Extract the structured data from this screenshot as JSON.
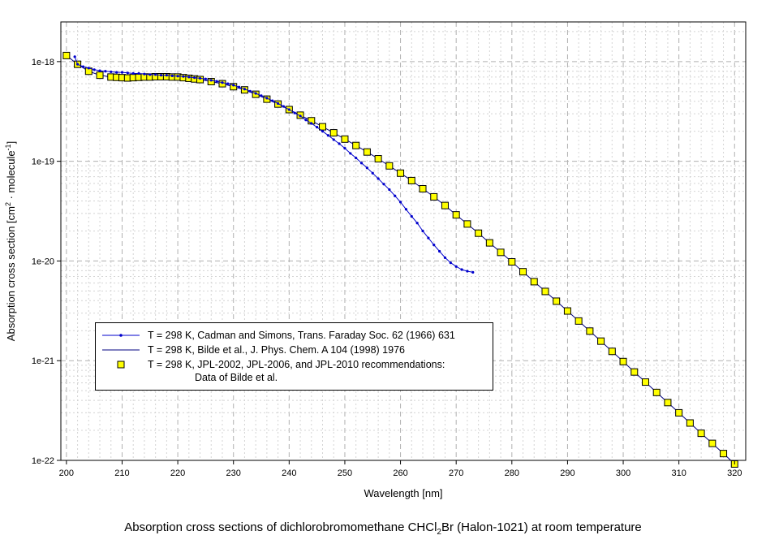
{
  "chart_data": {
    "type": "line",
    "xlabel": "Wavelength [nm]",
    "ylabel_parts": [
      "Absorption cross section [cm",
      "2",
      " · molecule",
      "-1",
      "]"
    ],
    "xlim": [
      199,
      322
    ],
    "ylim": [
      1e-22,
      2.5e-18
    ],
    "yscale": "log",
    "grid": true,
    "legend_position": "lower-left",
    "x_ticks": [
      200,
      210,
      220,
      230,
      240,
      250,
      260,
      270,
      280,
      290,
      300,
      310,
      320
    ],
    "y_ticks": [
      {
        "value": 1e-22,
        "label": "1e-22"
      },
      {
        "value": 1e-21,
        "label": "1e-21"
      },
      {
        "value": 1e-20,
        "label": "1e-20"
      },
      {
        "value": 1e-19,
        "label": "1e-19"
      },
      {
        "value": 1e-18,
        "label": "1e-18"
      }
    ],
    "series": [
      {
        "name": "T = 298 K, Cadman and Simons, Trans. Faraday Soc. 62 (1966) 631",
        "color": "#0000cc",
        "marker": "dot",
        "x": [
          201.5,
          202,
          203,
          204,
          205,
          206,
          207,
          208,
          209,
          210,
          211,
          212,
          213,
          214,
          215,
          216,
          217,
          218,
          219,
          220,
          221,
          222,
          223,
          224,
          225,
          226,
          227,
          228,
          229,
          230,
          231,
          232,
          233,
          234,
          235,
          236,
          237,
          238,
          239,
          240,
          241,
          242,
          243,
          244,
          245,
          246,
          247,
          248,
          249,
          250,
          251,
          252,
          253,
          254,
          255,
          256,
          257,
          258,
          259,
          260,
          261,
          262,
          263,
          264,
          265,
          266,
          267,
          268,
          269,
          270,
          271,
          272,
          273
        ],
        "y": [
          1.12e-18,
          9.4e-19,
          8.9e-19,
          8.6e-19,
          8.3e-19,
          8.1e-19,
          8e-19,
          7.9e-19,
          7.8e-19,
          7.8e-19,
          7.7e-19,
          7.6e-19,
          7.6e-19,
          7.5e-19,
          7.4e-19,
          7.4e-19,
          7.3e-19,
          7.3e-19,
          7.2e-19,
          7.15e-19,
          7.1e-19,
          7e-19,
          6.9e-19,
          6.8e-19,
          6.7e-19,
          6.5e-19,
          6.35e-19,
          6.15e-19,
          6e-19,
          5.8e-19,
          5.55e-19,
          5.3e-19,
          5.05e-19,
          4.8e-19,
          4.55e-19,
          4.3e-19,
          4.05e-19,
          3.8e-19,
          3.55e-19,
          3.3e-19,
          3.05e-19,
          2.85e-19,
          2.6e-19,
          2.4e-19,
          2.2e-19,
          2e-19,
          1.82e-19,
          1.65e-19,
          1.5e-19,
          1.35e-19,
          1.2e-19,
          1.08e-19,
          9.6e-20,
          8.6e-20,
          7.6e-20,
          6.7e-20,
          5.9e-20,
          5.2e-20,
          4.5e-20,
          3.9e-20,
          3.3e-20,
          2.8e-20,
          2.4e-20,
          2e-20,
          1.7e-20,
          1.45e-20,
          1.25e-20,
          1.08e-20,
          9.6e-21,
          8.8e-21,
          8.2e-21,
          7.9e-21,
          7.7e-21
        ]
      },
      {
        "name": "T = 298 K, Bilde et al., J. Phys. Chem. A 104 (1998) 1976",
        "color": "#000080",
        "marker": "none",
        "x": [
          200,
          202,
          204,
          206,
          208,
          210,
          212,
          214,
          216,
          218,
          220,
          222,
          224,
          226,
          228,
          230,
          232,
          234,
          236,
          238,
          240,
          242,
          244,
          246,
          248,
          250,
          252,
          254,
          256,
          258,
          260,
          262,
          264,
          266,
          268,
          270,
          272,
          274,
          276,
          278,
          280,
          282,
          284,
          286,
          288,
          290,
          292,
          294,
          296,
          298,
          300,
          302,
          304,
          306,
          308,
          310,
          312,
          314,
          316,
          318,
          320
        ],
        "y": [
          1.15e-18,
          9.4e-19,
          8e-19,
          7.3e-19,
          7e-19,
          6.9e-19,
          6.9e-19,
          7e-19,
          7.05e-19,
          7.05e-19,
          7e-19,
          6.8e-19,
          6.6e-19,
          6.3e-19,
          6e-19,
          5.6e-19,
          5.2e-19,
          4.7e-19,
          4.2e-19,
          3.75e-19,
          3.3e-19,
          2.9e-19,
          2.55e-19,
          2.22e-19,
          1.93e-19,
          1.67e-19,
          1.44e-19,
          1.24e-19,
          1.06e-19,
          9e-20,
          7.6e-20,
          6.4e-20,
          5.3e-20,
          4.4e-20,
          3.6e-20,
          2.9e-20,
          2.35e-20,
          1.9e-20,
          1.52e-20,
          1.22e-20,
          9.8e-21,
          7.8e-21,
          6.2e-21,
          4.95e-21,
          3.95e-21,
          3.15e-21,
          2.5e-21,
          1.98e-21,
          1.57e-21,
          1.24e-21,
          9.8e-22,
          7.7e-22,
          6.1e-22,
          4.8e-22,
          3.8e-22,
          3e-22,
          2.37e-22,
          1.87e-22,
          1.48e-22,
          1.17e-22,
          9.2e-23
        ]
      },
      {
        "name": "T = 298 K, JPL-2002, JPL-2006, and JPL-2010 recommendations:",
        "name_line2": "Data of Bilde et al.",
        "color": "#000000",
        "fill": "#ffff00",
        "marker": "square",
        "x": [
          200,
          202,
          204,
          206,
          208,
          209,
          210,
          211,
          212,
          213,
          214,
          215,
          216,
          217,
          218,
          219,
          220,
          221,
          222,
          223,
          224,
          226,
          228,
          230,
          232,
          234,
          236,
          238,
          240,
          242,
          244,
          246,
          248,
          250,
          252,
          254,
          256,
          258,
          260,
          262,
          264,
          266,
          268,
          270,
          272,
          274,
          276,
          278,
          280,
          282,
          284,
          286,
          288,
          290,
          292,
          294,
          296,
          298,
          300,
          302,
          304,
          306,
          308,
          310,
          312,
          314,
          316,
          318,
          320
        ],
        "y": [
          1.15e-18,
          9.4e-19,
          8e-19,
          7.3e-19,
          7e-19,
          6.95e-19,
          6.9e-19,
          6.85e-19,
          6.9e-19,
          6.95e-19,
          7e-19,
          7e-19,
          7.05e-19,
          7.05e-19,
          7.05e-19,
          7e-19,
          7e-19,
          6.9e-19,
          6.8e-19,
          6.7e-19,
          6.6e-19,
          6.3e-19,
          6e-19,
          5.6e-19,
          5.2e-19,
          4.7e-19,
          4.2e-19,
          3.75e-19,
          3.3e-19,
          2.9e-19,
          2.55e-19,
          2.22e-19,
          1.93e-19,
          1.67e-19,
          1.44e-19,
          1.24e-19,
          1.06e-19,
          9e-20,
          7.6e-20,
          6.4e-20,
          5.3e-20,
          4.4e-20,
          3.6e-20,
          2.9e-20,
          2.35e-20,
          1.9e-20,
          1.52e-20,
          1.22e-20,
          9.8e-21,
          7.8e-21,
          6.2e-21,
          4.95e-21,
          3.95e-21,
          3.15e-21,
          2.5e-21,
          1.98e-21,
          1.57e-21,
          1.24e-21,
          9.8e-22,
          7.7e-22,
          6.1e-22,
          4.8e-22,
          3.8e-22,
          3e-22,
          2.37e-22,
          1.87e-22,
          1.48e-22,
          1.17e-22,
          9.2e-23
        ]
      }
    ]
  },
  "caption": {
    "before": "Absorption cross sections of dichlorobromomethane CHCl",
    "sub": "2",
    "after": "Br (Halon-1021) at room temperature"
  }
}
